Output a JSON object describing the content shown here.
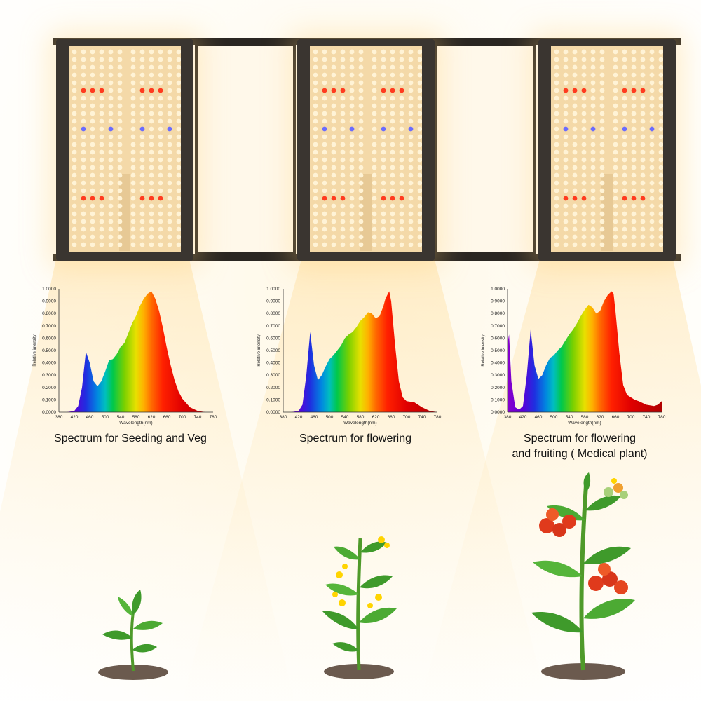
{
  "captions": {
    "c1": "Spectrum for Seeding and Veg",
    "c2": "Spectrum for flowering",
    "c3_line1": "Spectrum for flowering",
    "c3_line2": "and fruiting ( Medical plant)"
  },
  "colors": {
    "panel_frame": "#3a3530",
    "led_warm": "#fff3d6",
    "led_red": "#ff3b1f",
    "led_blue": "#6a6cff",
    "soil": "#6b5a4e",
    "leaf": "#3f9a2b",
    "tomato": "#e03a1c",
    "flower": "#ffd400"
  },
  "chart_data": [
    {
      "type": "area",
      "xlabel": "Wavelength(nm)",
      "ylabel": "Relative intensity",
      "xlim": [
        380,
        780
      ],
      "ylim": [
        0,
        1
      ],
      "xticks": [
        "380",
        "420",
        "460",
        "500",
        "540",
        "580",
        "620",
        "660",
        "700",
        "740",
        "780"
      ],
      "yticks": [
        "0.0000",
        "0.1000",
        "0.2000",
        "0.3000",
        "0.4000",
        "0.5000",
        "0.6000",
        "0.7000",
        "0.8000",
        "0.9000",
        "1.0000"
      ],
      "x": [
        380,
        400,
        420,
        430,
        440,
        450,
        460,
        470,
        480,
        490,
        500,
        510,
        520,
        530,
        540,
        550,
        560,
        570,
        580,
        590,
        600,
        610,
        620,
        630,
        640,
        650,
        660,
        670,
        680,
        690,
        700,
        720,
        740,
        760,
        780
      ],
      "values": [
        0,
        0,
        0.01,
        0.05,
        0.2,
        0.49,
        0.4,
        0.25,
        0.21,
        0.25,
        0.33,
        0.42,
        0.43,
        0.47,
        0.53,
        0.56,
        0.64,
        0.72,
        0.78,
        0.86,
        0.92,
        0.96,
        0.98,
        0.92,
        0.82,
        0.68,
        0.52,
        0.38,
        0.26,
        0.17,
        0.11,
        0.04,
        0.01,
        0,
        0
      ]
    },
    {
      "type": "area",
      "xlabel": "Wavelength(nm)",
      "ylabel": "Relative intensity",
      "xlim": [
        380,
        780
      ],
      "ylim": [
        0,
        1
      ],
      "xticks": [
        "380",
        "420",
        "460",
        "500",
        "540",
        "580",
        "620",
        "660",
        "700",
        "740",
        "780"
      ],
      "yticks": [
        "0.0000",
        "0.1000",
        "0.2000",
        "0.3000",
        "0.4000",
        "0.5000",
        "0.6000",
        "0.7000",
        "0.8000",
        "0.9000",
        "1.0000"
      ],
      "x": [
        380,
        400,
        420,
        430,
        440,
        450,
        460,
        470,
        480,
        490,
        500,
        510,
        520,
        530,
        540,
        550,
        560,
        570,
        580,
        590,
        600,
        610,
        620,
        630,
        640,
        645,
        650,
        655,
        660,
        670,
        680,
        690,
        700,
        720,
        740,
        760,
        780
      ],
      "values": [
        0,
        0,
        0.01,
        0.06,
        0.3,
        0.65,
        0.38,
        0.26,
        0.3,
        0.37,
        0.43,
        0.46,
        0.5,
        0.54,
        0.6,
        0.63,
        0.65,
        0.69,
        0.74,
        0.77,
        0.81,
        0.8,
        0.76,
        0.78,
        0.86,
        0.92,
        0.95,
        0.98,
        0.9,
        0.55,
        0.25,
        0.12,
        0.09,
        0.08,
        0.04,
        0.01,
        0
      ]
    },
    {
      "type": "area",
      "xlabel": "Wavelength(nm)",
      "ylabel": "Relative intensity",
      "xlim": [
        380,
        780
      ],
      "ylim": [
        0,
        1
      ],
      "xticks": [
        "380",
        "420",
        "460",
        "500",
        "540",
        "580",
        "620",
        "660",
        "700",
        "740",
        "780"
      ],
      "yticks": [
        "0.0000",
        "0.1000",
        "0.2000",
        "0.3000",
        "0.4000",
        "0.5000",
        "0.6000",
        "0.7000",
        "0.8000",
        "0.9000",
        "1.0000"
      ],
      "x": [
        380,
        384,
        390,
        400,
        410,
        420,
        430,
        440,
        450,
        460,
        470,
        480,
        490,
        500,
        510,
        520,
        530,
        540,
        550,
        560,
        570,
        580,
        590,
        600,
        610,
        620,
        630,
        640,
        650,
        655,
        660,
        670,
        680,
        690,
        700,
        710,
        720,
        740,
        760,
        770,
        780
      ],
      "values": [
        0.56,
        0.63,
        0.25,
        0.04,
        0.02,
        0.05,
        0.3,
        0.67,
        0.38,
        0.27,
        0.3,
        0.38,
        0.44,
        0.46,
        0.5,
        0.53,
        0.58,
        0.63,
        0.67,
        0.72,
        0.78,
        0.83,
        0.87,
        0.85,
        0.8,
        0.82,
        0.9,
        0.95,
        0.98,
        0.96,
        0.82,
        0.48,
        0.22,
        0.14,
        0.12,
        0.1,
        0.09,
        0.06,
        0.05,
        0.06,
        0.09
      ]
    }
  ]
}
